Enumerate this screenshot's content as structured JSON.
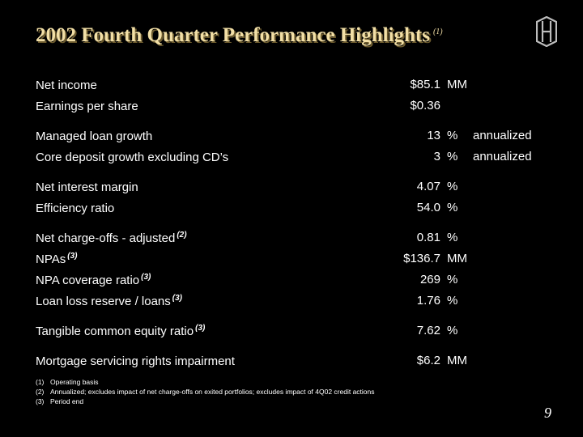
{
  "header": {
    "title": "2002 Fourth Quarter Performance Highlights",
    "title_footnote": "(1)"
  },
  "colors": {
    "title": "#f2dfa6",
    "background": "#000000",
    "text": "#ffffff"
  },
  "logo": {
    "icon": "hb-monogram-logo"
  },
  "rows": [
    {
      "label": "Net income",
      "sup": "",
      "value": "$85.1",
      "unit": "MM",
      "note": ""
    },
    {
      "label": "Earnings per share",
      "sup": "",
      "value": "$0.36",
      "unit": "",
      "note": ""
    },
    {
      "label": "Managed loan growth",
      "sup": "",
      "value": "13",
      "unit": "%",
      "note": "annualized"
    },
    {
      "label": "Core deposit growth excluding CD’s",
      "sup": "",
      "value": "3",
      "unit": "%",
      "note": "annualized"
    },
    {
      "label": "Net interest margin",
      "sup": "",
      "value": "4.07",
      "unit": "%",
      "note": ""
    },
    {
      "label": "Efficiency ratio",
      "sup": "",
      "value": "54.0",
      "unit": "%",
      "note": ""
    },
    {
      "label": "Net charge-offs - adjusted",
      "sup": "(2)",
      "value": "0.81",
      "unit": "%",
      "note": ""
    },
    {
      "label": "NPAs",
      "sup": "(3)",
      "value": "$136.7",
      "unit": "MM",
      "note": ""
    },
    {
      "label": "NPA coverage ratio",
      "sup": "(3)",
      "value": "269",
      "unit": "%",
      "note": ""
    },
    {
      "label": "Loan loss reserve / loans",
      "sup": "(3)",
      "value": "1.76",
      "unit": "%",
      "note": ""
    },
    {
      "label": "Tangible common equity ratio",
      "sup": "(3)",
      "value": "7.62",
      "unit": "%",
      "note": ""
    },
    {
      "label": "Mortgage servicing rights impairment",
      "sup": "",
      "value": "$6.2",
      "unit": "MM",
      "note": ""
    }
  ],
  "footnotes": [
    {
      "num": "(1)",
      "text": "Operating basis"
    },
    {
      "num": "(2)",
      "text": "Annualized; excludes impact of net charge-offs on exited portfolios; excludes impact of 4Q02 credit actions"
    },
    {
      "num": "(3)",
      "text": "Period end"
    }
  ],
  "page_number": "9"
}
